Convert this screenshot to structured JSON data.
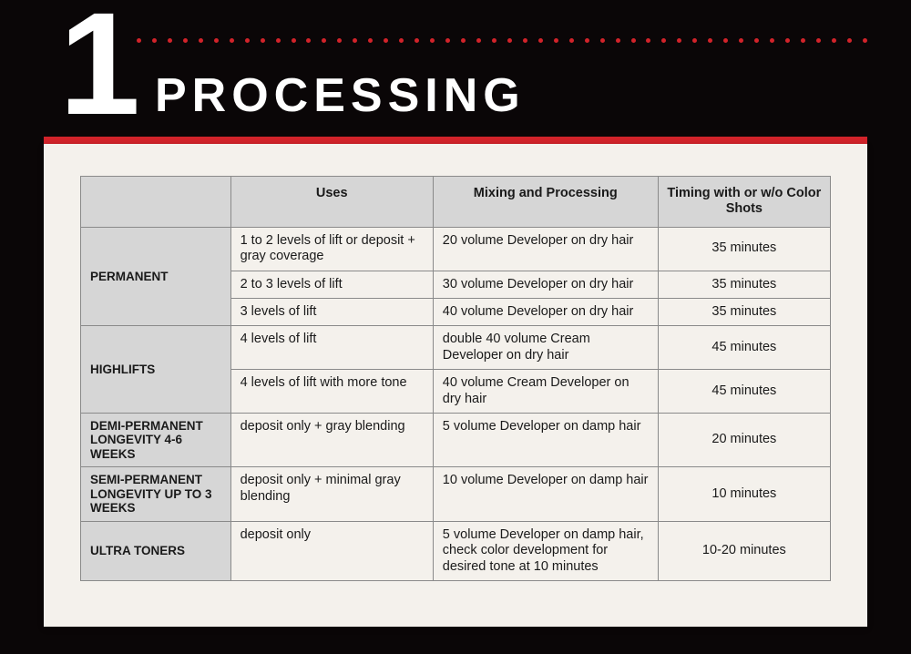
{
  "header": {
    "number": "1",
    "title": "PROCESSING",
    "dot_color": "#d2232a",
    "dot_count": 48
  },
  "colors": {
    "page_bg": "#0a0607",
    "accent_bar": "#d2232a",
    "panel_bg": "#f4f1ec",
    "table_header_bg": "#d6d6d6",
    "border": "#8a8a8a",
    "text": "#1a1a1a",
    "title_text": "#ffffff"
  },
  "table": {
    "columns": [
      "",
      "Uses",
      "Mixing and Processing",
      "Timing with or w/o Color Shots"
    ],
    "column_widths_pct": [
      20,
      27,
      30,
      23
    ],
    "sections": [
      {
        "label": "PERMANENT",
        "rows": [
          {
            "uses": "1 to 2 levels of lift or deposit + gray coverage",
            "mixing": "20 volume Developer on dry hair",
            "timing": "35 minutes"
          },
          {
            "uses": "2 to 3 levels of lift",
            "mixing": "30 volume Developer on dry hair",
            "timing": "35 minutes"
          },
          {
            "uses": "3 levels of lift",
            "mixing": "40 volume Developer on dry hair",
            "timing": "35 minutes"
          }
        ]
      },
      {
        "label": "HIGHLIFTS",
        "rows": [
          {
            "uses": "4 levels of lift",
            "mixing": "double 40 volume Cream Developer on dry hair",
            "timing": "45 minutes"
          },
          {
            "uses": "4 levels of lift with more tone",
            "mixing": "40 volume Cream Developer on dry hair",
            "timing": "45 minutes"
          }
        ]
      },
      {
        "label": "DEMI-PERMANENT LONGEVITY 4-6 WEEKS",
        "rows": [
          {
            "uses": "deposit only + gray blending",
            "mixing": "5 volume Developer on damp hair",
            "timing": "20 minutes"
          }
        ]
      },
      {
        "label": "SEMI-PERMANENT LONGEVITY UP TO 3 WEEKS",
        "rows": [
          {
            "uses": "deposit only + minimal gray blending",
            "mixing": "10 volume Developer on damp hair",
            "timing": "10 minutes"
          }
        ]
      },
      {
        "label": "ULTRA TONERS",
        "rows": [
          {
            "uses": "deposit only",
            "mixing": "5 volume Developer on damp hair, check color development for desired tone at 10 minutes",
            "timing": "10-20 minutes"
          }
        ]
      }
    ]
  }
}
